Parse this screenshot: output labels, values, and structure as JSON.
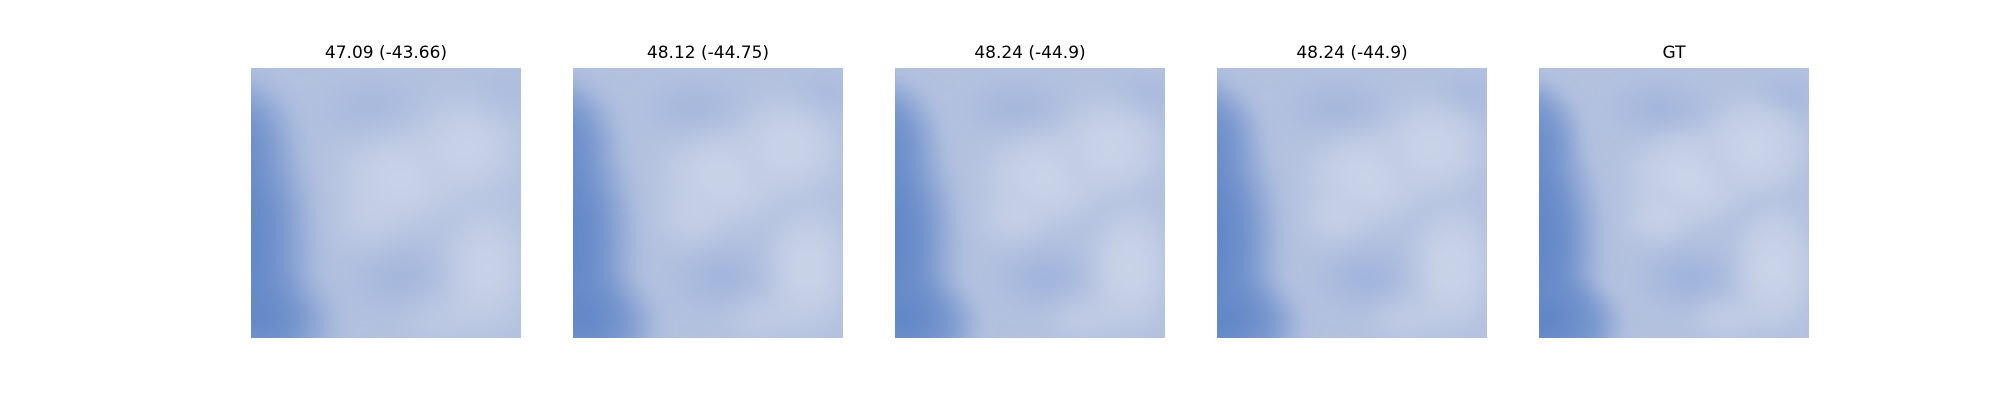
{
  "panels": [
    {
      "title": "47.09 (-43.66)",
      "blur": 5
    },
    {
      "title": "48.12 (-44.75)",
      "blur": 4
    },
    {
      "title": "48.24 (-44.9)",
      "blur": 3.5
    },
    {
      "title": "48.24 (-44.9)",
      "blur": 3.5
    },
    {
      "title": "GT",
      "blur": 2.5
    }
  ],
  "colors": {
    "sky_blue": "#5b84c4",
    "sky_mid": "#7d9ad0",
    "cloud_light": "#c2cde4",
    "cloud_bright": "#ccd5e8",
    "background": "#ffffff"
  }
}
